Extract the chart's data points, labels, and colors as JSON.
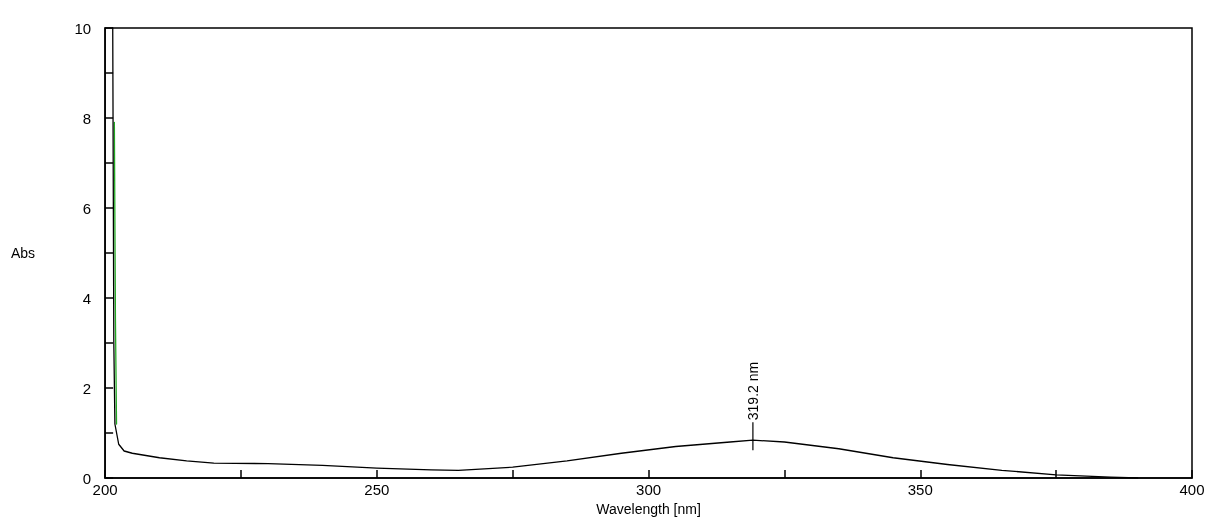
{
  "chart_data": {
    "type": "line",
    "xlabel": "Wavelength [nm]",
    "ylabel": "Abs",
    "xlim": [
      200,
      400
    ],
    "ylim": [
      0,
      10
    ],
    "xticks": [
      200,
      {
        "value": 225,
        "label": null
      },
      250,
      {
        "value": 275,
        "label": null
      },
      300,
      {
        "value": 325,
        "label": null
      },
      350,
      {
        "value": 375,
        "label": null
      },
      400
    ],
    "yticks": [
      0,
      {
        "value": 1,
        "label": null
      },
      2,
      {
        "value": 3,
        "label": null
      },
      4,
      {
        "value": 5,
        "label": null
      },
      6,
      {
        "value": 7,
        "label": null
      },
      8,
      {
        "value": 9,
        "label": null
      },
      10
    ],
    "grid": false,
    "marker": "none",
    "line_style": "solid",
    "annotations": [
      {
        "text": "319.2 nm",
        "x": 319.2,
        "y": 0.84
      }
    ],
    "series": [
      {
        "color": "#22aa22",
        "x": [
          201.7,
          201.9,
          202.1
        ],
        "values": [
          7.9,
          3.5,
          1.2
        ]
      },
      {
        "color": "#000000",
        "x": [
          201.4,
          201.6,
          201.8,
          202.5,
          203.5,
          205,
          210,
          215,
          220,
          230,
          240,
          250,
          260,
          265,
          275,
          285,
          295,
          305,
          315,
          319.2,
          325,
          335,
          345,
          355,
          365,
          375,
          385,
          390
        ],
        "values": [
          10,
          3,
          1.2,
          0.75,
          0.6,
          0.55,
          0.45,
          0.38,
          0.33,
          0.32,
          0.28,
          0.22,
          0.18,
          0.17,
          0.24,
          0.38,
          0.55,
          0.7,
          0.8,
          0.84,
          0.8,
          0.65,
          0.45,
          0.3,
          0.17,
          0.07,
          0.02,
          0
        ]
      }
    ]
  }
}
